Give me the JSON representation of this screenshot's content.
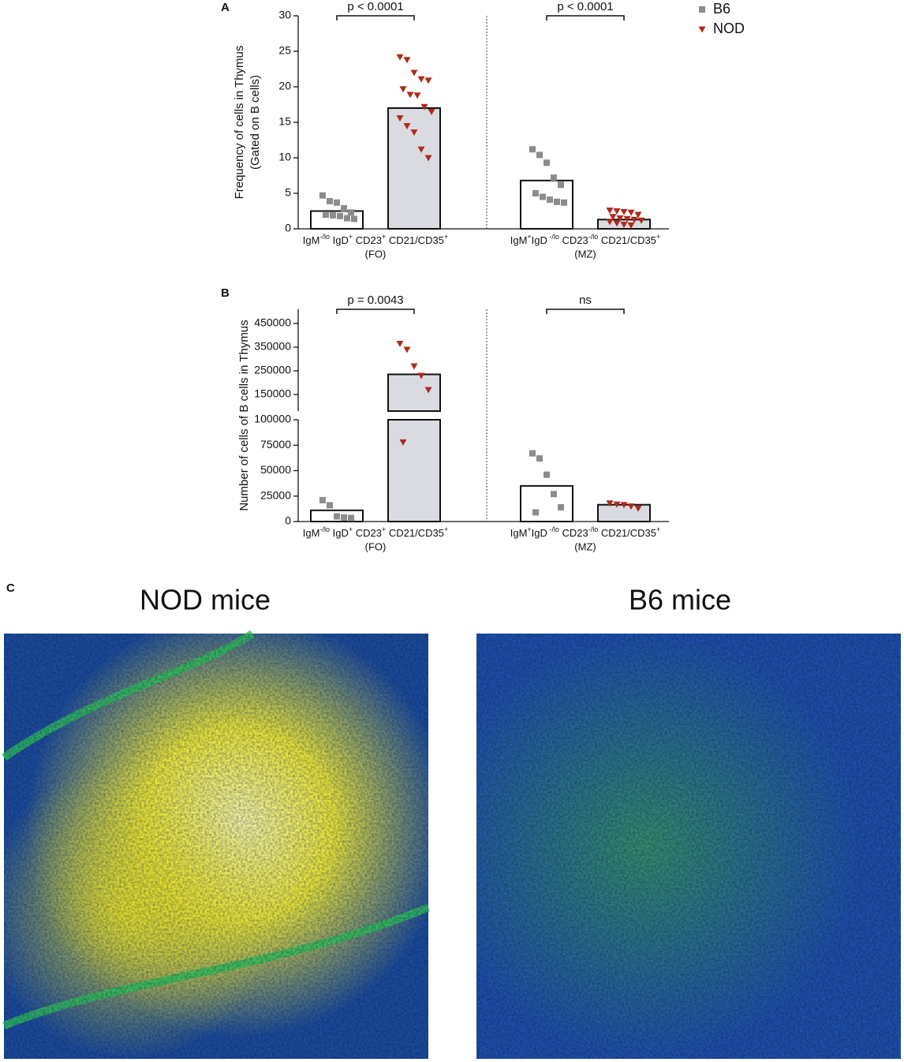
{
  "chart_data": [
    {
      "type": "bar",
      "panel": "A",
      "ylabel": [
        "Frequency of cells in Thymus",
        "(Gated on B cells)"
      ],
      "ylim": [
        0,
        30
      ],
      "yticks": [
        0,
        5,
        10,
        15,
        20,
        25,
        30
      ],
      "groups": [
        {
          "label": [
            "IgM",
            "-/lo",
            " IgD",
            "+",
            " CD23",
            "+",
            " CD21/CD35",
            "+"
          ],
          "sublabel": "(FO)"
        },
        {
          "label": [
            "IgM",
            "+",
            "IgD",
            " -/lo",
            " CD23",
            "-/lo",
            " CD21/CD35",
            "+"
          ],
          "sublabel": "(MZ)"
        }
      ],
      "series": [
        {
          "name": "B6",
          "color": "#8c8c8c",
          "bar_fill": "#ffffff",
          "marker": "square",
          "values": [
            2.5,
            6.8
          ],
          "points": [
            [
              4.7,
              3.9,
              3.7,
              2.9,
              2.3,
              2.0,
              1.9,
              1.8,
              1.5,
              1.4
            ],
            [
              11.2,
              10.4,
              9.3,
              7.2,
              6.2,
              5.0,
              4.5,
              4.1,
              3.8,
              3.7
            ]
          ]
        },
        {
          "name": "NOD",
          "color": "#b02a1a",
          "bar_fill": "#d9dbe1",
          "marker": "triangle",
          "values": [
            17,
            1.3
          ],
          "points": [
            [
              24.2,
              23.8,
              22.0,
              21.1,
              20.9,
              19.7,
              18.9,
              18.8,
              17.2,
              16.5,
              15.6,
              14.5,
              13.6,
              11.2,
              10.0
            ],
            [
              2.6,
              2.5,
              2.4,
              2.3,
              2.0,
              1.7,
              1.5,
              1.4,
              1.3,
              1.2,
              1.0,
              0.8,
              0.6,
              0.5
            ]
          ]
        }
      ],
      "annotations": [
        {
          "text": "p < 0.0001",
          "group": 0
        },
        {
          "text": "p < 0.0001",
          "group": 1
        }
      ],
      "legend": true
    },
    {
      "type": "bar",
      "panel": "B",
      "ylabel": [
        "Number of cells of B cells in Thymus"
      ],
      "y_segments": [
        {
          "ylim": [
            0,
            100000
          ],
          "yticks": [
            0,
            25000,
            50000,
            75000,
            100000
          ]
        },
        {
          "ylim": [
            80000,
            510000
          ],
          "yticks": [
            150000,
            250000,
            350000,
            450000
          ]
        }
      ],
      "groups": [
        {
          "label": [
            "IgM",
            "-/lo",
            " IgD",
            "+",
            " CD23",
            "+",
            " CD21/CD35",
            "+"
          ],
          "sublabel": "(FO)"
        },
        {
          "label": [
            "IgM",
            "+",
            "IgD",
            " -/lo",
            " CD23",
            "-/lo",
            " CD21/CD35",
            "+"
          ],
          "sublabel": "(MZ)"
        }
      ],
      "series": [
        {
          "name": "B6",
          "color": "#8c8c8c",
          "bar_fill": "#ffffff",
          "marker": "square",
          "values": [
            11000,
            35000
          ],
          "points": [
            [
              21000,
              16000,
              5000,
              4000,
              3500
            ],
            [
              67000,
              62000,
              46000,
              27000,
              14000,
              9000
            ]
          ]
        },
        {
          "name": "NOD",
          "color": "#b02a1a",
          "bar_fill": "#d9dbe1",
          "marker": "triangle",
          "values": [
            235000,
            16500
          ],
          "points": [
            [
              365000,
              340000,
              270000,
              230000,
              170000,
              78000
            ],
            [
              18000,
              17000,
              16500,
              15000,
              13000
            ]
          ]
        }
      ],
      "annotations": [
        {
          "text": "p = 0.0043",
          "group": 0
        },
        {
          "text": "ns",
          "group": 1
        }
      ],
      "legend": false
    }
  ],
  "panel_c": {
    "label": "C",
    "images": [
      {
        "title": "NOD mice"
      },
      {
        "title": "B6 mice"
      }
    ]
  }
}
